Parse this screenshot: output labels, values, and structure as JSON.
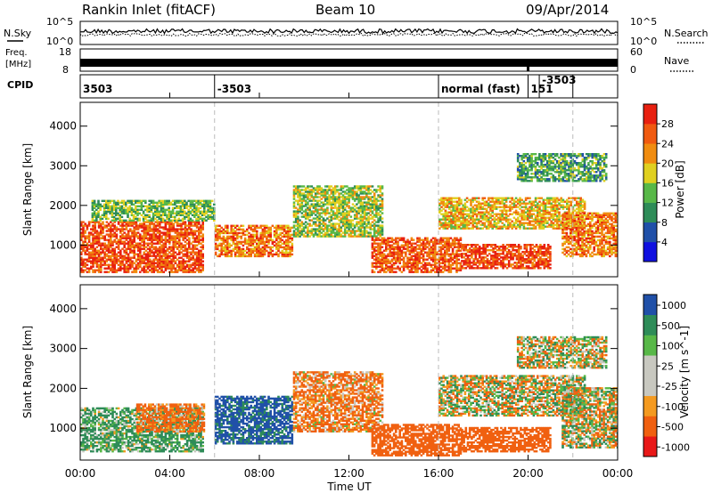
{
  "header": {
    "station": "Rankin Inlet (fitACF)",
    "beam": "Beam 10",
    "date": "09/Apr/2014"
  },
  "noise_panel": {
    "left_label": "N.Sky",
    "right_label": "N.Search",
    "left_ticks": [
      "10^5",
      "10^0"
    ],
    "right_ticks": [
      "10^5",
      "10^0"
    ]
  },
  "freq_panel": {
    "left_label_line1": "Freq.",
    "left_label_line2": "[MHz]",
    "right_label": "Nave",
    "left_ticks": [
      "18",
      "8"
    ],
    "right_ticks": [
      "60",
      "0"
    ]
  },
  "cpid_panel": {
    "label": "CPID",
    "segments": [
      {
        "text": "3503",
        "start_hour": 0
      },
      {
        "text": "-3503",
        "start_hour": 6
      },
      {
        "text": "normal (fast)",
        "start_hour": 16
      },
      {
        "text": "151",
        "start_hour": 20
      },
      {
        "text": "-3503",
        "start_hour": 20.5
      },
      {
        "text": "",
        "start_hour": 22
      }
    ]
  },
  "time_axis": {
    "xlabel": "Time UT",
    "tick_labels": [
      "00:00",
      "04:00",
      "08:00",
      "12:00",
      "16:00",
      "20:00",
      "00:00"
    ],
    "tick_hours": [
      0,
      4,
      8,
      12,
      16,
      20,
      24
    ]
  },
  "colors": {
    "power_scale": [
      "#1010e0",
      "#2050a8",
      "#2e8c58",
      "#58b848",
      "#e0d020",
      "#f08c10",
      "#f05a10",
      "#e82010"
    ],
    "velocity_scale": [
      "#e81818",
      "#f06010",
      "#f49a20",
      "#c8c8c0",
      "#c8c8c0",
      "#58b848",
      "#2e8c58",
      "#2050a8"
    ]
  },
  "chart_data": [
    {
      "type": "heatmap",
      "title": "",
      "xlabel": "Time UT",
      "ylabel": "Slant Range [km]",
      "xlim": [
        0,
        24
      ],
      "ylim": [
        200,
        4600
      ],
      "yticks": [
        1000,
        2000,
        3000,
        4000
      ],
      "colorbar": {
        "label": "Power [dB]",
        "range": [
          0,
          32
        ],
        "ticks": [
          "4",
          "8",
          "12",
          "16",
          "20",
          "24",
          "28"
        ]
      },
      "bands": [
        {
          "t_start": 0.0,
          "t_end": 5.5,
          "r_min": 300,
          "r_max": 1600,
          "level": 27
        },
        {
          "t_start": 0.5,
          "t_end": 6.0,
          "r_min": 1600,
          "r_max": 2100,
          "level": 14
        },
        {
          "t_start": 6.0,
          "t_end": 9.5,
          "r_min": 700,
          "r_max": 1500,
          "level": 24
        },
        {
          "t_start": 9.5,
          "t_end": 13.5,
          "r_min": 1200,
          "r_max": 2500,
          "level": 16
        },
        {
          "t_start": 13.0,
          "t_end": 17.0,
          "r_min": 300,
          "r_max": 1200,
          "level": 26
        },
        {
          "t_start": 16.0,
          "t_end": 22.5,
          "r_min": 1400,
          "r_max": 2200,
          "level": 20
        },
        {
          "t_start": 17.0,
          "t_end": 21.0,
          "r_min": 400,
          "r_max": 1000,
          "level": 28
        },
        {
          "t_start": 21.5,
          "t_end": 24.0,
          "r_min": 700,
          "r_max": 1800,
          "level": 24
        },
        {
          "t_start": 19.5,
          "t_end": 23.5,
          "r_min": 2600,
          "r_max": 3300,
          "level": 12
        }
      ]
    },
    {
      "type": "heatmap",
      "title": "",
      "xlabel": "Time UT",
      "ylabel": "Slant Range [km]",
      "xlim": [
        0,
        24
      ],
      "ylim": [
        200,
        4600
      ],
      "yticks": [
        1000,
        2000,
        3000,
        4000
      ],
      "colorbar": {
        "label": "Velocity [m s^-1]",
        "ticks": [
          "1000",
          "500",
          "100",
          "25",
          "-25",
          "-100",
          "-500",
          "-1000"
        ]
      },
      "bands": [
        {
          "t_start": 0.0,
          "t_end": 5.5,
          "r_min": 400,
          "r_max": 1500,
          "value": 150
        },
        {
          "t_start": 2.5,
          "t_end": 5.5,
          "r_min": 900,
          "r_max": 1600,
          "value": -200
        },
        {
          "t_start": 6.0,
          "t_end": 9.5,
          "r_min": 600,
          "r_max": 1800,
          "value": 600
        },
        {
          "t_start": 9.5,
          "t_end": 13.5,
          "r_min": 900,
          "r_max": 2400,
          "value": -150
        },
        {
          "t_start": 13.0,
          "t_end": 17.0,
          "r_min": 300,
          "r_max": 1100,
          "value": -300
        },
        {
          "t_start": 16.0,
          "t_end": 22.5,
          "r_min": 1300,
          "r_max": 2300,
          "value": 0
        },
        {
          "t_start": 17.0,
          "t_end": 21.0,
          "r_min": 400,
          "r_max": 1000,
          "value": -300
        },
        {
          "t_start": 21.5,
          "t_end": 24.0,
          "r_min": 500,
          "r_max": 2000,
          "value": 0
        },
        {
          "t_start": 19.5,
          "t_end": 23.5,
          "r_min": 2500,
          "r_max": 3300,
          "value": 0
        }
      ]
    }
  ]
}
